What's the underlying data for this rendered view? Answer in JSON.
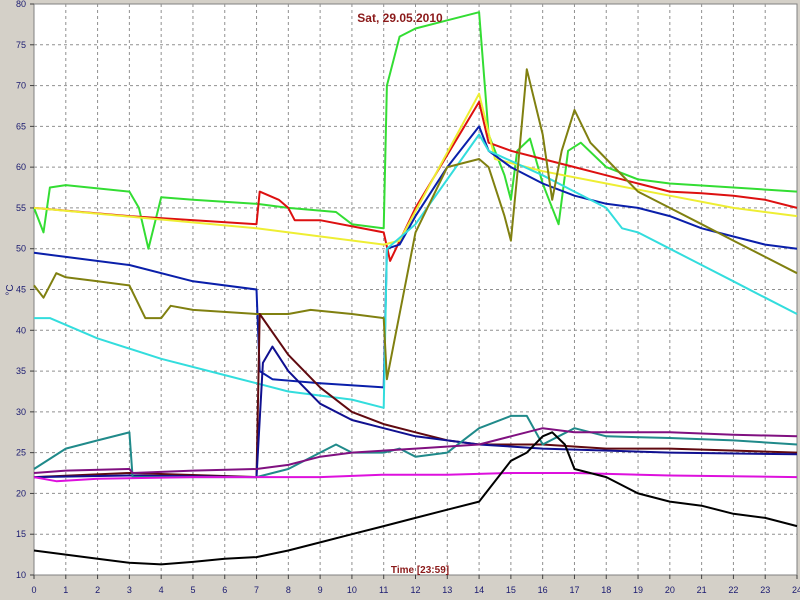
{
  "chart_data": {
    "type": "line",
    "title": "Sat, 29.05.2010",
    "xlabel": "Time [23:59]",
    "ylabel": "°C",
    "xlim": [
      0,
      24
    ],
    "ylim": [
      10,
      80
    ],
    "xticks": [
      "0",
      "1",
      "2",
      "3",
      "4",
      "5",
      "6",
      "7",
      "8",
      "9",
      "10",
      "11",
      "12",
      "13",
      "14",
      "15",
      "16",
      "17",
      "18",
      "19",
      "20",
      "21",
      "22",
      "23",
      "24"
    ],
    "yticks": [
      "10",
      "15",
      "20",
      "25",
      "30",
      "35",
      "40",
      "45",
      "50",
      "55",
      "60",
      "65",
      "70",
      "75",
      "80"
    ],
    "grid": true,
    "background": "#ffffff",
    "series": [
      {
        "color": "#33dd33",
        "points": [
          [
            0,
            55
          ],
          [
            0.3,
            52
          ],
          [
            0.5,
            57.5
          ],
          [
            1,
            57.8
          ],
          [
            3,
            57
          ],
          [
            3.3,
            55
          ],
          [
            3.6,
            50
          ],
          [
            4,
            56.3
          ],
          [
            5,
            56
          ],
          [
            7,
            55.5
          ],
          [
            8,
            55
          ],
          [
            9.5,
            54.5
          ],
          [
            10,
            53
          ],
          [
            11,
            52.5
          ],
          [
            11.1,
            70
          ],
          [
            11.5,
            76
          ],
          [
            12,
            77
          ],
          [
            13,
            78
          ],
          [
            14,
            79
          ],
          [
            14.3,
            64
          ],
          [
            14.8,
            59
          ],
          [
            15,
            56
          ],
          [
            15.2,
            62
          ],
          [
            15.6,
            63.5
          ],
          [
            16,
            58
          ],
          [
            16.2,
            56
          ],
          [
            16.5,
            53
          ],
          [
            16.8,
            62
          ],
          [
            17.2,
            63
          ],
          [
            18,
            60
          ],
          [
            19,
            58.5
          ],
          [
            20,
            58
          ],
          [
            22,
            57.5
          ],
          [
            24,
            57
          ]
        ]
      },
      {
        "color": "#dd1010",
        "points": [
          [
            0,
            55
          ],
          [
            3,
            54
          ],
          [
            7,
            53
          ],
          [
            7.1,
            57
          ],
          [
            7.7,
            56
          ],
          [
            8,
            55
          ],
          [
            8.2,
            53.5
          ],
          [
            9,
            53.5
          ],
          [
            11,
            52
          ],
          [
            11.2,
            48.5
          ],
          [
            12,
            55
          ],
          [
            14,
            68
          ],
          [
            14.3,
            63
          ],
          [
            15,
            62
          ],
          [
            16,
            61
          ],
          [
            17,
            60
          ],
          [
            18,
            59
          ],
          [
            19,
            58
          ],
          [
            20,
            57
          ],
          [
            21,
            56.8
          ],
          [
            22,
            56.5
          ],
          [
            23,
            56
          ],
          [
            24,
            55
          ]
        ]
      },
      {
        "color": "#eeee33",
        "points": [
          [
            0,
            55
          ],
          [
            7,
            52.5
          ],
          [
            11,
            50.5
          ],
          [
            11.5,
            51
          ],
          [
            14,
            69
          ],
          [
            14.5,
            61
          ],
          [
            16,
            59.5
          ],
          [
            18,
            58
          ],
          [
            20,
            56.5
          ],
          [
            22,
            55
          ],
          [
            24,
            54
          ]
        ]
      },
      {
        "color": "#0a1faa",
        "points": [
          [
            0,
            49.5
          ],
          [
            1,
            49
          ],
          [
            3,
            48
          ],
          [
            5,
            46
          ],
          [
            7,
            45
          ],
          [
            7.1,
            35
          ],
          [
            7.5,
            34
          ],
          [
            9,
            33.5
          ],
          [
            11,
            33
          ],
          [
            11.1,
            50
          ],
          [
            11.5,
            50.5
          ],
          [
            12,
            54
          ],
          [
            13,
            60
          ],
          [
            14,
            65
          ],
          [
            14.3,
            62
          ],
          [
            15,
            60
          ],
          [
            16,
            58
          ],
          [
            17,
            56.5
          ],
          [
            18,
            55.5
          ],
          [
            19,
            55
          ],
          [
            20,
            54
          ],
          [
            21,
            52.5
          ],
          [
            22,
            51.5
          ],
          [
            23,
            50.5
          ],
          [
            24,
            50
          ]
        ]
      },
      {
        "color": "#33dddd",
        "points": [
          [
            0,
            41.5
          ],
          [
            0.5,
            41.5
          ],
          [
            2,
            39
          ],
          [
            4,
            36.5
          ],
          [
            6,
            34.5
          ],
          [
            8,
            32.5
          ],
          [
            10,
            31.5
          ],
          [
            11,
            30.5
          ],
          [
            11.1,
            50
          ],
          [
            12,
            53
          ],
          [
            14,
            64
          ],
          [
            14.3,
            62
          ],
          [
            16,
            59
          ],
          [
            17,
            57
          ],
          [
            18,
            55
          ],
          [
            18.5,
            52.5
          ],
          [
            19,
            52
          ],
          [
            20,
            50
          ],
          [
            21,
            48
          ],
          [
            22,
            46
          ],
          [
            23,
            44
          ],
          [
            24,
            42
          ]
        ]
      },
      {
        "color": "#808010",
        "points": [
          [
            0,
            45.5
          ],
          [
            0.3,
            44
          ],
          [
            0.7,
            47
          ],
          [
            1,
            46.5
          ],
          [
            2,
            46
          ],
          [
            3,
            45.5
          ],
          [
            3.5,
            41.5
          ],
          [
            4,
            41.5
          ],
          [
            4.3,
            43
          ],
          [
            5,
            42.5
          ],
          [
            7,
            42
          ],
          [
            8,
            42
          ],
          [
            8.7,
            42.5
          ],
          [
            10,
            42
          ],
          [
            11,
            41.5
          ],
          [
            11.1,
            34
          ],
          [
            11.4,
            40
          ],
          [
            12,
            52
          ],
          [
            13,
            60
          ],
          [
            14,
            61
          ],
          [
            14.3,
            60
          ],
          [
            14.8,
            54
          ],
          [
            15,
            51
          ],
          [
            15.2,
            59
          ],
          [
            15.5,
            72
          ],
          [
            16,
            64
          ],
          [
            16.3,
            56
          ],
          [
            16.6,
            62
          ],
          [
            17,
            67
          ],
          [
            17.5,
            63
          ],
          [
            18,
            61
          ],
          [
            19,
            57
          ],
          [
            20,
            55
          ],
          [
            21,
            53
          ],
          [
            22,
            51
          ],
          [
            23,
            49
          ],
          [
            24,
            47
          ]
        ]
      },
      {
        "color": "#600a10",
        "points": [
          [
            0,
            22
          ],
          [
            3,
            22.5
          ],
          [
            7,
            22
          ],
          [
            7.1,
            42
          ],
          [
            8,
            37
          ],
          [
            9,
            33
          ],
          [
            10,
            30
          ],
          [
            11,
            28.5
          ],
          [
            12,
            27.5
          ],
          [
            13,
            26.5
          ],
          [
            14,
            26
          ],
          [
            16,
            26
          ],
          [
            18,
            25.5
          ],
          [
            20,
            25.5
          ],
          [
            24,
            25
          ]
        ]
      },
      {
        "color": "#101090",
        "points": [
          [
            0,
            22
          ],
          [
            3,
            22.2
          ],
          [
            7,
            22
          ],
          [
            7.2,
            36
          ],
          [
            7.5,
            38
          ],
          [
            8,
            35
          ],
          [
            9,
            31
          ],
          [
            10,
            29
          ],
          [
            11,
            28
          ],
          [
            12,
            27
          ],
          [
            14,
            26
          ],
          [
            16,
            25.5
          ],
          [
            20,
            25
          ],
          [
            24,
            24.8
          ]
        ]
      },
      {
        "color": "#208a8a",
        "points": [
          [
            0,
            23
          ],
          [
            1,
            25.5
          ],
          [
            2,
            26.5
          ],
          [
            3,
            27.5
          ],
          [
            3.1,
            22
          ],
          [
            5,
            22
          ],
          [
            7,
            22
          ],
          [
            8,
            23
          ],
          [
            9,
            25
          ],
          [
            9.5,
            26
          ],
          [
            10,
            25
          ],
          [
            11,
            25
          ],
          [
            11.5,
            25.5
          ],
          [
            12,
            24.5
          ],
          [
            13,
            25
          ],
          [
            14,
            28
          ],
          [
            15,
            29.5
          ],
          [
            15.5,
            29.5
          ],
          [
            16,
            26
          ],
          [
            16.5,
            27
          ],
          [
            17,
            28
          ],
          [
            18,
            27
          ],
          [
            20,
            26.8
          ],
          [
            22,
            26.5
          ],
          [
            24,
            26
          ]
        ]
      },
      {
        "color": "#801080",
        "points": [
          [
            0,
            22.5
          ],
          [
            1,
            22.8
          ],
          [
            3,
            23
          ],
          [
            3.1,
            22.5
          ],
          [
            5,
            22.8
          ],
          [
            7,
            23
          ],
          [
            8,
            23.5
          ],
          [
            9,
            24.5
          ],
          [
            10,
            25
          ],
          [
            12,
            25.5
          ],
          [
            14,
            26
          ],
          [
            15,
            27
          ],
          [
            16,
            28
          ],
          [
            17,
            27.5
          ],
          [
            18,
            27.5
          ],
          [
            20,
            27.5
          ],
          [
            22,
            27.2
          ],
          [
            24,
            27
          ]
        ]
      },
      {
        "color": "#dd10dd",
        "points": [
          [
            0,
            22
          ],
          [
            0.7,
            21.5
          ],
          [
            2,
            21.8
          ],
          [
            5,
            22
          ],
          [
            7,
            22
          ],
          [
            9,
            22
          ],
          [
            11,
            22.3
          ],
          [
            13,
            22.3
          ],
          [
            15,
            22.5
          ],
          [
            17,
            22.5
          ],
          [
            20,
            22.2
          ],
          [
            24,
            22
          ]
        ]
      },
      {
        "color": "#000000",
        "points": [
          [
            0,
            13
          ],
          [
            1,
            12.5
          ],
          [
            2,
            12
          ],
          [
            3,
            11.5
          ],
          [
            4,
            11.3
          ],
          [
            5,
            11.6
          ],
          [
            6,
            12
          ],
          [
            7,
            12.2
          ],
          [
            8,
            13
          ],
          [
            9,
            14
          ],
          [
            10,
            15
          ],
          [
            11,
            16
          ],
          [
            12,
            17
          ],
          [
            13,
            18
          ],
          [
            14,
            19
          ],
          [
            15,
            24
          ],
          [
            15.5,
            25
          ],
          [
            16,
            27
          ],
          [
            16.3,
            27.5
          ],
          [
            16.7,
            26
          ],
          [
            17,
            23
          ],
          [
            18,
            22
          ],
          [
            19,
            20
          ],
          [
            20,
            19
          ],
          [
            21,
            18.5
          ],
          [
            22,
            17.5
          ],
          [
            23,
            17
          ],
          [
            24,
            16
          ]
        ]
      }
    ]
  }
}
